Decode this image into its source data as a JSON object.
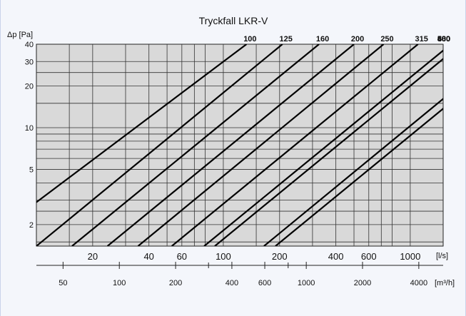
{
  "chart_data": {
    "type": "line",
    "title": "Tryckfall LKR-V",
    "ylabel": "Δp [Pa]",
    "yscale": "log",
    "xscale": "log",
    "ylim": [
      1.4,
      40
    ],
    "xlim": [
      10,
      1500
    ],
    "x_unit": "[l/s]",
    "x2_unit": "[m³/h]",
    "yticks": [
      2,
      5,
      10,
      20,
      30,
      40
    ],
    "xticks": [
      20,
      40,
      60,
      100,
      200,
      400,
      600,
      1000
    ],
    "x2ticks": [
      50,
      100,
      200,
      400,
      600,
      1000,
      2000,
      4000
    ],
    "grid": true,
    "series": [
      {
        "name": "100",
        "x": [
          10,
          133
        ],
        "y": [
          2.9,
          40
        ]
      },
      {
        "name": "125",
        "x": [
          10,
          207
        ],
        "y": [
          1.4,
          40
        ]
      },
      {
        "name": "160",
        "x": [
          15.5,
          325
        ],
        "y": [
          1.4,
          40
        ]
      },
      {
        "name": "200",
        "x": [
          24,
          500
        ],
        "y": [
          1.4,
          40
        ]
      },
      {
        "name": "250",
        "x": [
          35,
          720
        ],
        "y": [
          1.4,
          40
        ]
      },
      {
        "name": "315",
        "x": [
          53,
          1100
        ],
        "y": [
          1.4,
          40
        ]
      },
      {
        "name": "400",
        "x": [
          79,
          1650
        ],
        "y": [
          1.4,
          40
        ]
      },
      {
        "name": "500",
        "x": [
          90,
          1870
        ],
        "y": [
          1.4,
          40
        ]
      },
      {
        "name": "630",
        "x": [
          165,
          3400
        ],
        "y": [
          1.4,
          40
        ]
      },
      {
        "name": "800",
        "x": [
          190,
          3950
        ],
        "y": [
          1.4,
          40
        ]
      }
    ]
  }
}
